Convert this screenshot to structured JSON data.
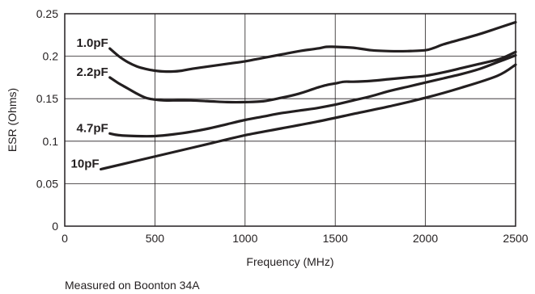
{
  "chart_data": {
    "type": "line",
    "title": "",
    "xlabel": "Frequency (MHz)",
    "ylabel": "ESR (Ohms)",
    "xlim": [
      0,
      2500
    ],
    "ylim": [
      0,
      0.25
    ],
    "grid": true,
    "legend": "inline labels at left end of each curve",
    "x_ticks": [
      0,
      500,
      1000,
      1500,
      2000,
      2500
    ],
    "x_tick_labels": [
      "0",
      "500",
      "1000",
      "1500",
      "2000",
      "2500"
    ],
    "y_ticks": [
      0,
      0.05,
      0.1,
      0.15,
      0.2,
      0.25
    ],
    "y_tick_labels": [
      "0",
      "0.05",
      "0.1",
      "0.15",
      "0.2",
      "0.25"
    ],
    "series": [
      {
        "name": "1.0pF",
        "x": [
          250,
          300,
          350,
          400,
          450,
          500,
          550,
          600,
          650,
          700,
          800,
          900,
          1000,
          1100,
          1200,
          1300,
          1400,
          1450,
          1500,
          1600,
          1700,
          1800,
          1900,
          2000,
          2050,
          2100,
          2200,
          2300,
          2400,
          2500
        ],
        "y": [
          0.209,
          0.2,
          0.193,
          0.188,
          0.185,
          0.183,
          0.182,
          0.182,
          0.183,
          0.185,
          0.188,
          0.191,
          0.194,
          0.198,
          0.202,
          0.206,
          0.209,
          0.211,
          0.211,
          0.21,
          0.207,
          0.206,
          0.206,
          0.207,
          0.21,
          0.214,
          0.22,
          0.226,
          0.233,
          0.24
        ]
      },
      {
        "name": "2.2pF",
        "x": [
          250,
          300,
          350,
          400,
          450,
          500,
          550,
          600,
          700,
          800,
          900,
          1000,
          1100,
          1200,
          1300,
          1400,
          1450,
          1500,
          1550,
          1600,
          1700,
          1800,
          1900,
          2000,
          2100,
          2200,
          2300,
          2400,
          2450,
          2500
        ],
        "y": [
          0.175,
          0.168,
          0.162,
          0.156,
          0.151,
          0.149,
          0.148,
          0.148,
          0.148,
          0.147,
          0.146,
          0.146,
          0.147,
          0.151,
          0.156,
          0.163,
          0.166,
          0.168,
          0.17,
          0.17,
          0.171,
          0.173,
          0.175,
          0.177,
          0.181,
          0.186,
          0.191,
          0.196,
          0.2,
          0.205
        ]
      },
      {
        "name": "4.7pF",
        "x": [
          250,
          300,
          400,
          500,
          600,
          700,
          800,
          900,
          1000,
          1100,
          1200,
          1300,
          1400,
          1500,
          1600,
          1700,
          1800,
          1900,
          2000,
          2100,
          2200,
          2300,
          2400,
          2500
        ],
        "y": [
          0.109,
          0.107,
          0.106,
          0.106,
          0.108,
          0.111,
          0.115,
          0.12,
          0.125,
          0.129,
          0.133,
          0.136,
          0.139,
          0.143,
          0.148,
          0.153,
          0.159,
          0.164,
          0.169,
          0.174,
          0.179,
          0.185,
          0.193,
          0.201
        ]
      },
      {
        "name": "10pF",
        "x": [
          200,
          400,
          600,
          800,
          1000,
          1200,
          1400,
          1600,
          1800,
          2000,
          2200,
          2400,
          2500
        ],
        "y": [
          0.067,
          0.077,
          0.087,
          0.097,
          0.107,
          0.115,
          0.123,
          0.132,
          0.141,
          0.151,
          0.163,
          0.177,
          0.19
        ]
      }
    ],
    "annotation": "Measured on Boonton 34A"
  }
}
